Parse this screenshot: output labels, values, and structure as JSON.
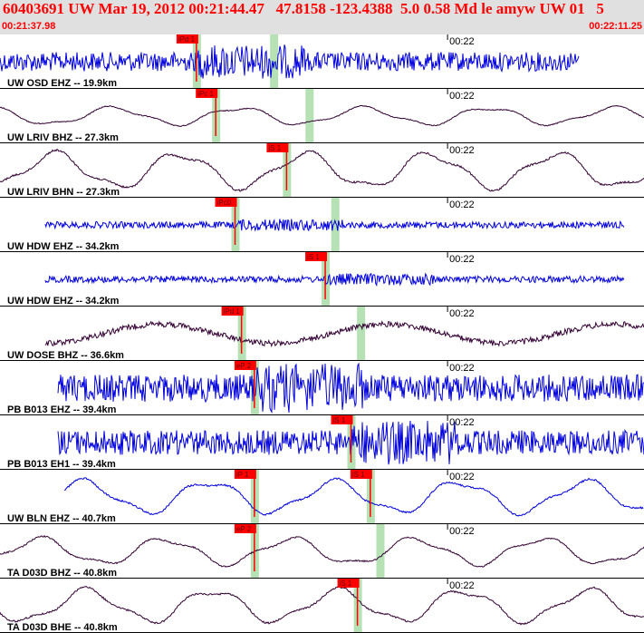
{
  "header": {
    "title": "60403691 UW Mar 19, 2012 00:21:44.47   47.8158 -123.4388  5.0 0.58 Md le amyw UW 01   5",
    "time_start": "00:21:37.98",
    "time_end": "00:22:11.25"
  },
  "colors": {
    "header_bg": "#e0e0e0",
    "header_text": "#ff0000",
    "trace_blue": "#0000dd",
    "trace_purple": "#330033",
    "pick_red": "#ff0000",
    "window_green": "#a8dca8"
  },
  "chart_data": {
    "type": "line",
    "title": "",
    "time_range": [
      "00:21:37.98",
      "00:22:11.25"
    ],
    "minute_marker": "00:22",
    "traces": [
      {
        "label": "UW OSD EHZ -- 19.9km",
        "color": "blue",
        "style": "noisy",
        "amplitude": 0.35,
        "data_end": 0.9,
        "picks": [
          {
            "label": "iPd 1",
            "t": 0.305
          }
        ],
        "s_time": 0.425
      },
      {
        "label": "UW LRIV BHZ -- 27.3km",
        "color": "purple",
        "style": "smooth",
        "amplitude": 0.3,
        "picks": [
          {
            "label": "iPc 1",
            "t": 0.335
          }
        ],
        "s_time": 0.48
      },
      {
        "label": "UW LRIV BHN -- 27.3km",
        "color": "purple",
        "style": "smooth",
        "amplitude": 0.6,
        "picks": [
          {
            "label": "iS 1",
            "t": 0.445
          }
        ]
      },
      {
        "label": "UW HDW EHZ -- 34.2km",
        "color": "blue",
        "style": "noisy",
        "amplitude": 0.12,
        "data_start": 0.07,
        "data_end": 0.97,
        "picks": [
          {
            "label": "iPc0",
            "t": 0.365
          }
        ],
        "s_time": 0.52
      },
      {
        "label": "UW HDW EHZ -- 34.2km",
        "color": "blue",
        "style": "noisy",
        "amplitude": 0.12,
        "data_start": 0.07,
        "data_end": 0.97,
        "picks": [
          {
            "label": "iS 1",
            "t": 0.505
          }
        ]
      },
      {
        "label": "UW DOSE BHZ -- 36.6km",
        "color": "purple",
        "style": "mixed",
        "amplitude": 0.35,
        "data_start": 0.07,
        "picks": [
          {
            "label": "iPd 1",
            "t": 0.375
          }
        ],
        "s_time": 0.56
      },
      {
        "label": "PB B013 EHZ -- 39.4km",
        "color": "blue",
        "style": "noisy",
        "amplitude": 0.5,
        "data_start": 0.09,
        "picks": [
          {
            "label": "eP 2",
            "t": 0.395
          }
        ]
      },
      {
        "label": "PB B013 EH1 -- 39.4km",
        "color": "blue",
        "style": "noisy",
        "amplitude": 0.45,
        "data_start": 0.09,
        "picks": [
          {
            "label": "iS 1",
            "t": 0.545
          }
        ]
      },
      {
        "label": "UW BLN EHZ -- 40.7km",
        "color": "blue",
        "style": "smooth",
        "amplitude": 0.55,
        "data_start": 0.1,
        "picks": [
          {
            "label": "iP 1",
            "t": 0.395
          },
          {
            "label": "iS 1",
            "t": 0.575
          }
        ]
      },
      {
        "label": "TA D03D BHZ -- 40.8km",
        "color": "purple",
        "style": "smooth",
        "amplitude": 0.45,
        "picks": [
          {
            "label": "eP 2",
            "t": 0.395
          }
        ],
        "s_time": 0.59
      },
      {
        "label": "TA D03D BHE -- 40.8km",
        "color": "purple",
        "style": "smooth",
        "amplitude": 0.55,
        "picks": [
          {
            "label": "iS 1",
            "t": 0.555
          }
        ]
      }
    ]
  }
}
